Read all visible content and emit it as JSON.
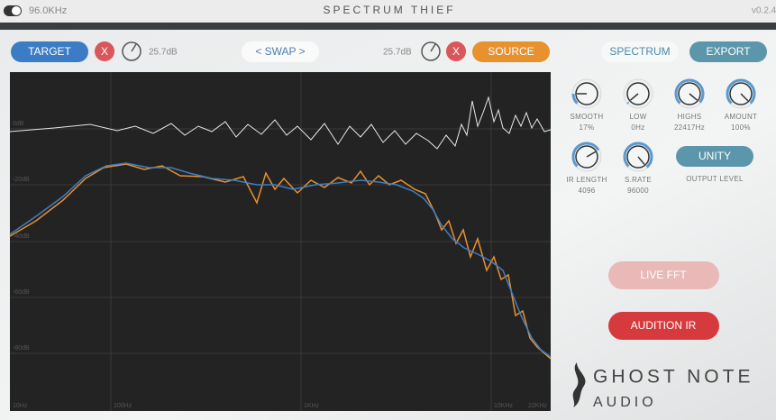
{
  "title_bar": {
    "sample_rate": "96.0KHz",
    "title": "SPECTRUM THIEF",
    "version": "v0.2.4"
  },
  "toolbar": {
    "target": "TARGET",
    "target_clear": "X",
    "target_gain": "25.7dB",
    "swap": "< SWAP >",
    "source_gain": "25.7dB",
    "source_clear": "X",
    "source": "SOURCE",
    "spectrum": "SPECTRUM",
    "export": "EXPORT"
  },
  "graph": {
    "y_labels": [
      "0dB",
      "-20dB",
      "-40dB",
      "-60dB",
      "-80dB"
    ],
    "x_labels": [
      "10Hz",
      "100Hz",
      "1KHz",
      "10KHz",
      "22KHz"
    ]
  },
  "knobs": [
    {
      "label": "SMOOTH",
      "value": "17%"
    },
    {
      "label": "LOW",
      "value": "0Hz"
    },
    {
      "label": "HIGHS",
      "value": "22417Hz"
    },
    {
      "label": "AMOUNT",
      "value": "100%"
    },
    {
      "label": "IR LENGTH",
      "value": "4096"
    },
    {
      "label": "S.RATE",
      "value": "96000"
    }
  ],
  "unity": "UNITY",
  "output_level": "OUTPUT LEVEL",
  "live_fft": "LIVE FFT",
  "audition_ir": "AUDITION IR",
  "logo": {
    "line1": "GHOST NOTE",
    "line2": "AUDIO"
  }
}
